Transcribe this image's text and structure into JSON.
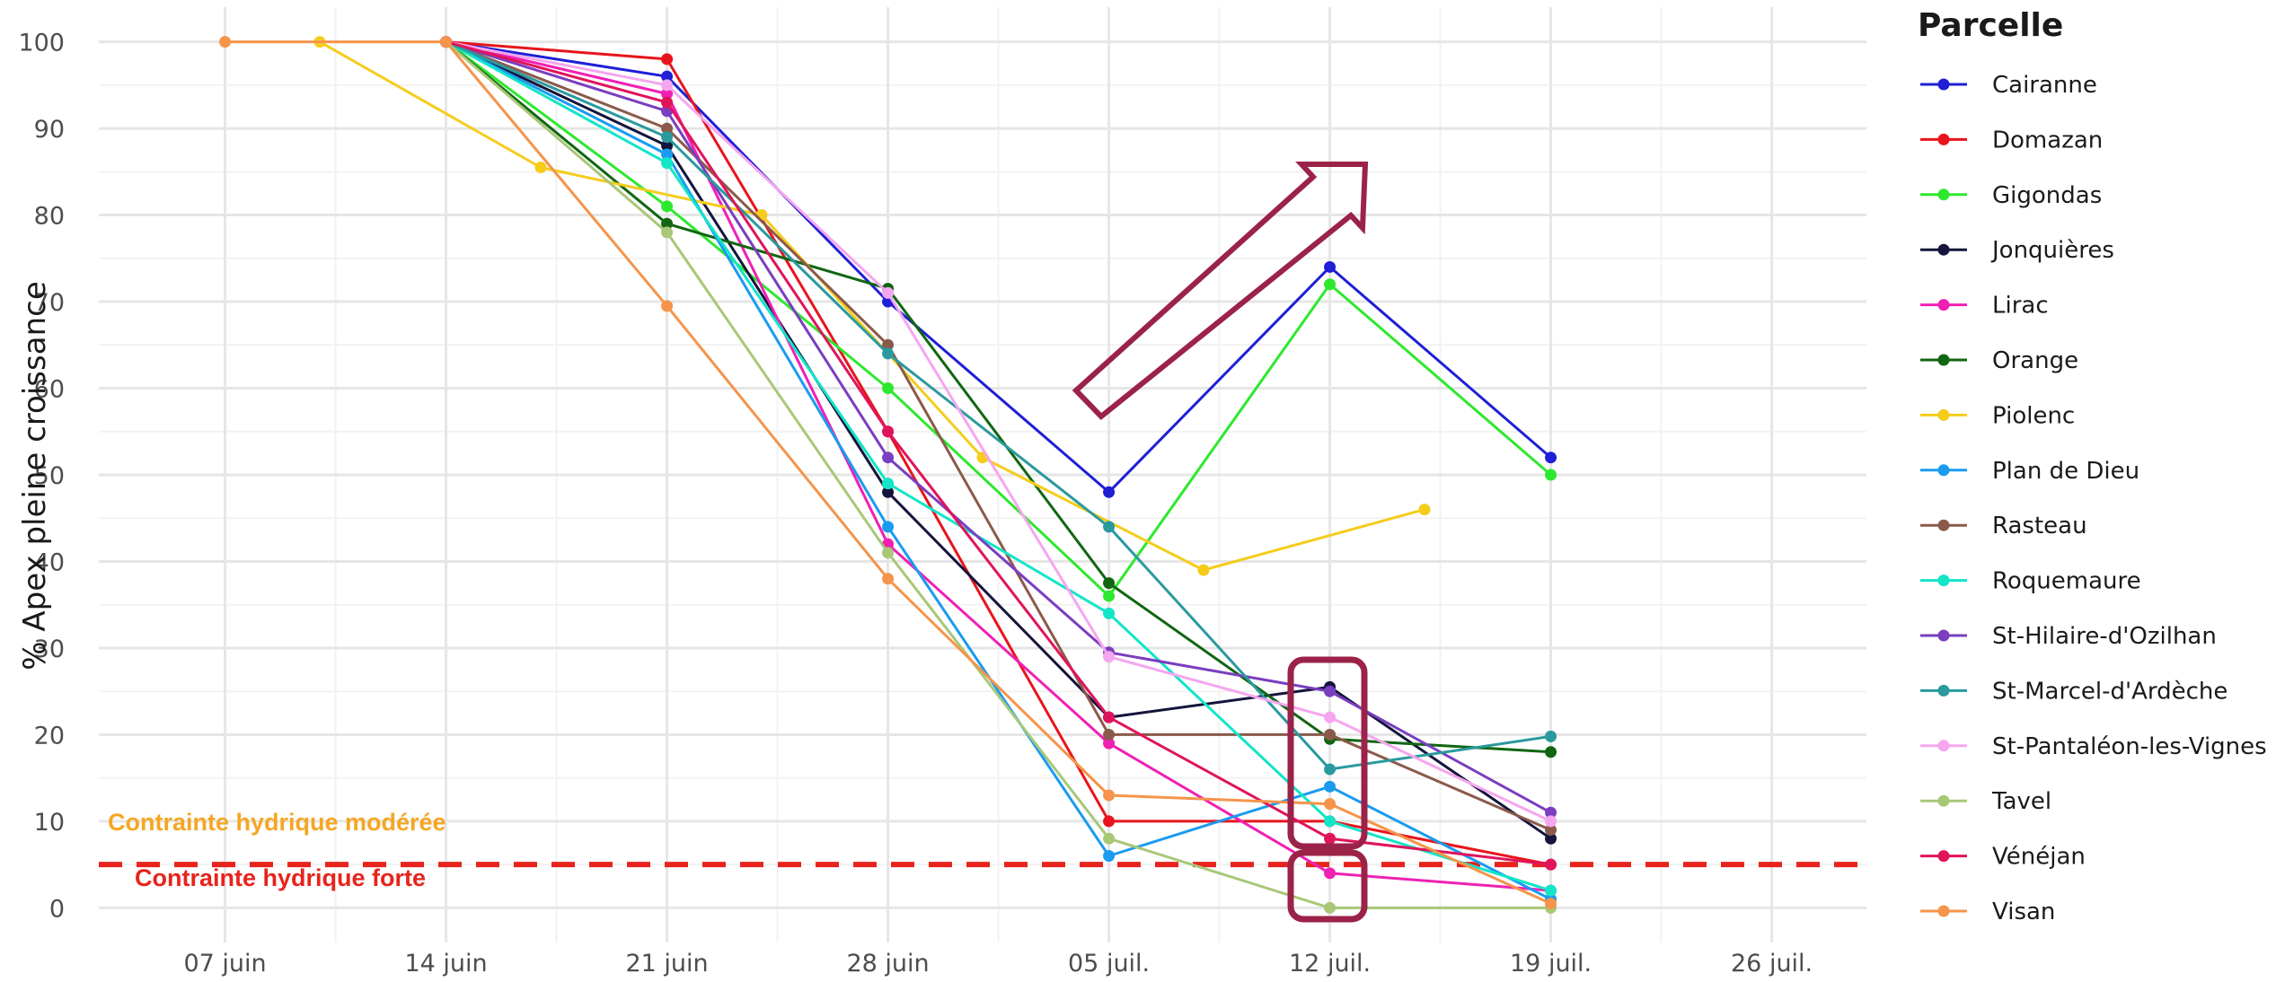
{
  "chart_data": {
    "type": "line",
    "title": "",
    "xlabel": "",
    "ylabel": "% Apex pleine croissance",
    "x_range": [
      "2022-06-03",
      "2022-07-29"
    ],
    "ylim": [
      -4,
      104
    ],
    "y_ticks": [
      0,
      10,
      20,
      30,
      40,
      50,
      60,
      70,
      80,
      90,
      100
    ],
    "x_ticks": [
      {
        "date": "2022-06-07",
        "label": "07 juin"
      },
      {
        "date": "2022-06-14",
        "label": "14 juin"
      },
      {
        "date": "2022-06-21",
        "label": "21 juin"
      },
      {
        "date": "2022-06-28",
        "label": "28 juin"
      },
      {
        "date": "2022-07-05",
        "label": "05 juil."
      },
      {
        "date": "2022-07-12",
        "label": "12 juil."
      },
      {
        "date": "2022-07-19",
        "label": "19 juil."
      },
      {
        "date": "2022-07-26",
        "label": "26 juil."
      }
    ],
    "grid": true,
    "legend": {
      "title": "Parcelle",
      "placement": "right"
    },
    "series": [
      {
        "name": "Cairanne",
        "color": "#1f1fd6",
        "points": [
          [
            "2022-06-14",
            100
          ],
          [
            "2022-06-21",
            96
          ],
          [
            "2022-06-28",
            70
          ],
          [
            "2022-07-05",
            48
          ],
          [
            "2022-07-12",
            74
          ],
          [
            "2022-07-19",
            52
          ]
        ]
      },
      {
        "name": "Domazan",
        "color": "#e8141c",
        "points": [
          [
            "2022-06-14",
            100
          ],
          [
            "2022-06-21",
            98
          ],
          [
            "2022-06-28",
            55
          ],
          [
            "2022-07-05",
            10
          ],
          [
            "2022-07-12",
            10
          ],
          [
            "2022-07-19",
            5
          ]
        ]
      },
      {
        "name": "Gigondas",
        "color": "#2ee82e",
        "points": [
          [
            "2022-06-14",
            100
          ],
          [
            "2022-06-21",
            81
          ],
          [
            "2022-06-28",
            60
          ],
          [
            "2022-07-05",
            36
          ],
          [
            "2022-07-12",
            72
          ],
          [
            "2022-07-19",
            50
          ]
        ]
      },
      {
        "name": "Jonquières",
        "color": "#14143c",
        "points": [
          [
            "2022-06-14",
            100
          ],
          [
            "2022-06-21",
            88
          ],
          [
            "2022-06-28",
            48
          ],
          [
            "2022-07-05",
            22
          ],
          [
            "2022-07-12",
            25.5
          ],
          [
            "2022-07-19",
            8
          ]
        ]
      },
      {
        "name": "Lirac",
        "color": "#f020b4",
        "points": [
          [
            "2022-06-14",
            100
          ],
          [
            "2022-06-21",
            94
          ],
          [
            "2022-06-28",
            42
          ],
          [
            "2022-07-05",
            19
          ],
          [
            "2022-07-12",
            4
          ],
          [
            "2022-07-19",
            2
          ]
        ]
      },
      {
        "name": "Orange",
        "color": "#116611",
        "points": [
          [
            "2022-06-14",
            100
          ],
          [
            "2022-06-21",
            79
          ],
          [
            "2022-06-28",
            71.5
          ],
          [
            "2022-07-05",
            37.5
          ],
          [
            "2022-07-12",
            19.5
          ],
          [
            "2022-07-19",
            18
          ]
        ]
      },
      {
        "name": "Piolenc",
        "color": "#f5cc1a",
        "points": [
          [
            "2022-06-10",
            100
          ],
          [
            "2022-06-17",
            85.5
          ],
          [
            "2022-06-24",
            80
          ],
          [
            "2022-07-01",
            52
          ],
          [
            "2022-07-08",
            39
          ],
          [
            "2022-07-15",
            46
          ]
        ]
      },
      {
        "name": "Plan de Dieu",
        "color": "#1a9bf0",
        "points": [
          [
            "2022-06-14",
            100
          ],
          [
            "2022-06-21",
            87
          ],
          [
            "2022-06-28",
            44
          ],
          [
            "2022-07-05",
            6
          ],
          [
            "2022-07-12",
            14
          ],
          [
            "2022-07-19",
            1
          ]
        ]
      },
      {
        "name": "Rasteau",
        "color": "#8b5a4a",
        "points": [
          [
            "2022-06-14",
            100
          ],
          [
            "2022-06-21",
            90
          ],
          [
            "2022-06-28",
            65
          ],
          [
            "2022-07-05",
            20
          ],
          [
            "2022-07-12",
            20
          ],
          [
            "2022-07-19",
            9
          ]
        ]
      },
      {
        "name": "Roquemaure",
        "color": "#12e5c8",
        "points": [
          [
            "2022-06-14",
            100
          ],
          [
            "2022-06-21",
            86
          ],
          [
            "2022-06-28",
            49
          ],
          [
            "2022-07-05",
            34
          ],
          [
            "2022-07-12",
            10
          ],
          [
            "2022-07-19",
            2
          ]
        ]
      },
      {
        "name": "St-Hilaire-d'Ozilhan",
        "color": "#7a3ec0",
        "points": [
          [
            "2022-06-14",
            100
          ],
          [
            "2022-06-21",
            92
          ],
          [
            "2022-06-28",
            52
          ],
          [
            "2022-07-05",
            29.5
          ],
          [
            "2022-07-12",
            25
          ],
          [
            "2022-07-19",
            11
          ]
        ]
      },
      {
        "name": "St-Marcel-d'Ardèche",
        "color": "#2a9a9e",
        "points": [
          [
            "2022-06-14",
            100
          ],
          [
            "2022-06-21",
            89
          ],
          [
            "2022-06-28",
            64
          ],
          [
            "2022-07-05",
            44
          ],
          [
            "2022-07-12",
            16
          ],
          [
            "2022-07-19",
            19.8
          ]
        ]
      },
      {
        "name": "St-Pantaléon-les-Vignes",
        "color": "#f5a6f0",
        "points": [
          [
            "2022-06-14",
            100
          ],
          [
            "2022-06-21",
            95
          ],
          [
            "2022-06-28",
            71
          ],
          [
            "2022-07-05",
            29
          ],
          [
            "2022-07-12",
            22
          ],
          [
            "2022-07-19",
            10
          ]
        ]
      },
      {
        "name": "Tavel",
        "color": "#a8c878",
        "points": [
          [
            "2022-06-14",
            100
          ],
          [
            "2022-06-21",
            78
          ],
          [
            "2022-06-28",
            41
          ],
          [
            "2022-07-05",
            8
          ],
          [
            "2022-07-12",
            0
          ],
          [
            "2022-07-19",
            0
          ]
        ]
      },
      {
        "name": "Vénéjan",
        "color": "#e0145a",
        "points": [
          [
            "2022-06-14",
            100
          ],
          [
            "2022-06-21",
            93
          ],
          [
            "2022-06-28",
            55
          ],
          [
            "2022-07-05",
            22
          ],
          [
            "2022-07-12",
            8
          ],
          [
            "2022-07-19",
            5
          ]
        ]
      },
      {
        "name": "Visan",
        "color": "#f5944a",
        "points": [
          [
            "2022-06-07",
            100
          ],
          [
            "2022-06-14",
            100
          ],
          [
            "2022-06-21",
            69.5
          ],
          [
            "2022-06-28",
            38
          ],
          [
            "2022-07-05",
            13
          ],
          [
            "2022-07-12",
            12
          ],
          [
            "2022-07-19",
            0.5
          ]
        ]
      }
    ],
    "reference_line": {
      "y": 5,
      "color": "#e8231c",
      "style": "dashed"
    },
    "annotations": [
      {
        "text": "Contrainte hydrique modérée",
        "color": "#f5a623"
      },
      {
        "text": "Contrainte hydrique forte",
        "color": "#e8231c"
      }
    ],
    "highlights": {
      "color": "#9b2248",
      "shapes": [
        "up-right-arrow",
        "rounded-box",
        "rounded-box"
      ]
    }
  }
}
